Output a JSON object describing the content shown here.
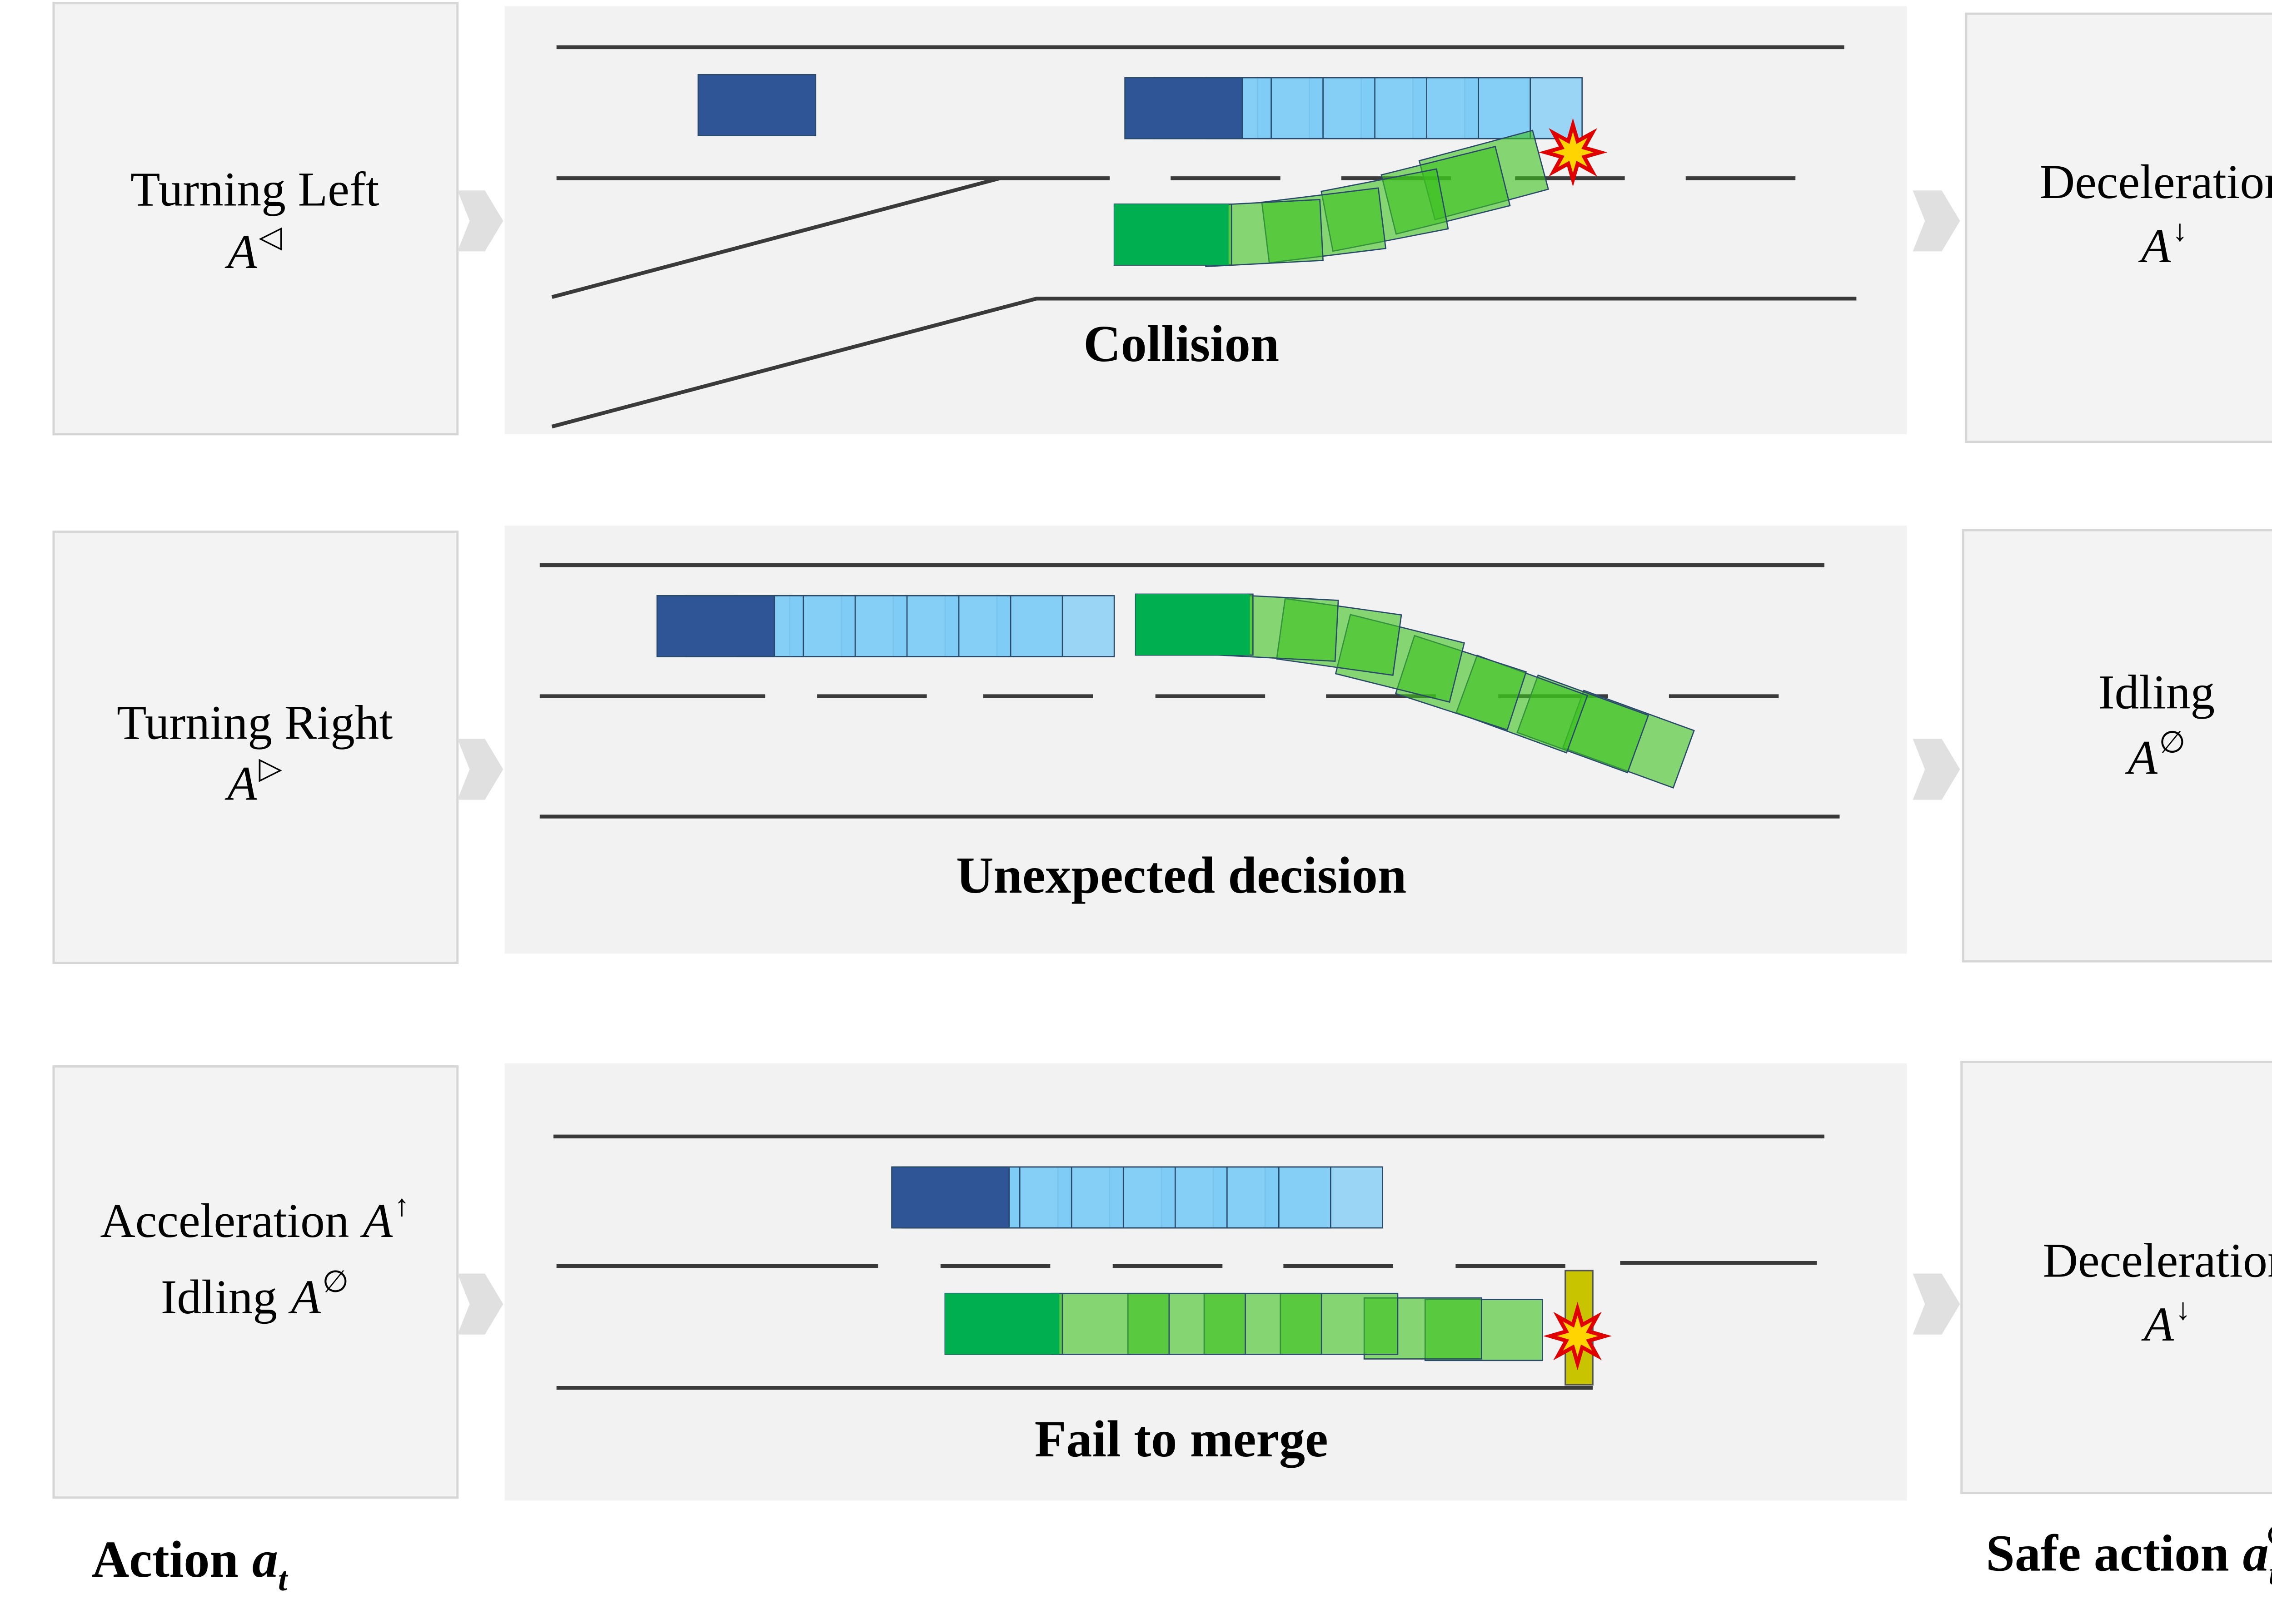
{
  "rows": [
    {
      "action": [
        {
          "text": "Turning Left"
        },
        {
          "symbol": "A",
          "sup": "◁"
        }
      ],
      "caption": "Collision",
      "safe": [
        {
          "text": "Deceleration"
        },
        {
          "symbol": "A",
          "sup": "↓"
        }
      ]
    },
    {
      "action": [
        {
          "text": "Turning Right"
        },
        {
          "symbol": "A",
          "sup": "▷"
        }
      ],
      "caption": "Unexpected decision",
      "safe": [
        {
          "text": "Idling"
        },
        {
          "symbol": "A",
          "sup": "∅"
        }
      ]
    },
    {
      "action": [
        {
          "text": "Acceleration",
          "symbol": "A",
          "sup": "↑"
        },
        {
          "text": "Idling",
          "symbol": "A",
          "sup": "∅"
        }
      ],
      "caption": "Fail to merge",
      "safe": [
        {
          "text": "Deceleration"
        },
        {
          "symbol": "A",
          "sup": "↓"
        }
      ]
    }
  ],
  "footer": {
    "action": {
      "text": "Action",
      "symbol": "a",
      "sub": "t"
    },
    "safe": {
      "text": "Safe action",
      "symbol": "a",
      "sub": "t",
      "sup": "⊙"
    }
  }
}
